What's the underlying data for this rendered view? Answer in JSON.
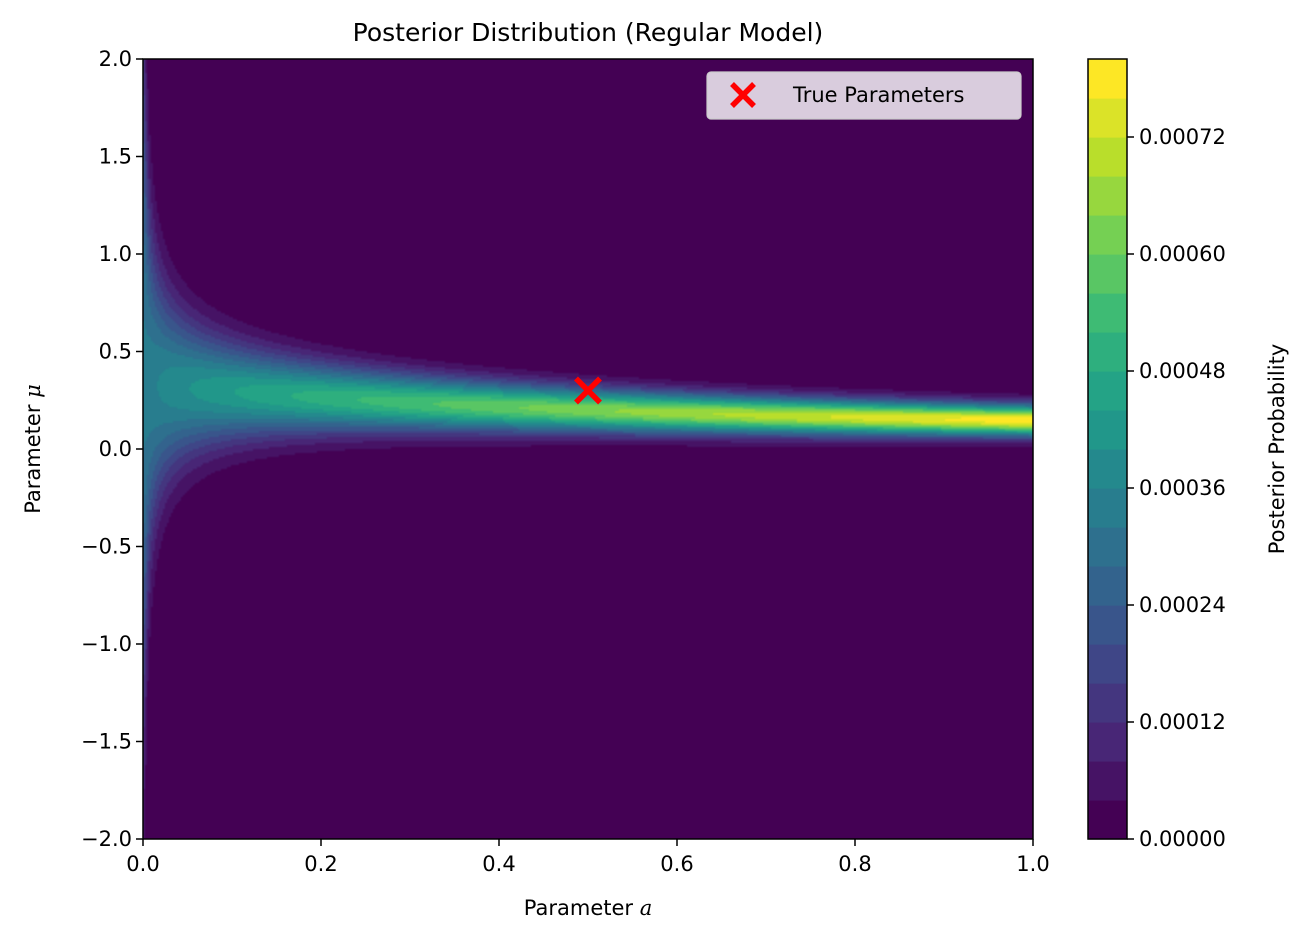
{
  "chart_data": {
    "type": "contourf",
    "title": "Posterior Distribution (Regular Model)",
    "xlabel_prefix": "Parameter ",
    "xlabel_symbol": "a",
    "ylabel_prefix": "Parameter ",
    "ylabel_symbol": "μ",
    "xlim": [
      0.0,
      1.0
    ],
    "ylim": [
      -2.0,
      2.0
    ],
    "xticks": [
      0.0,
      0.2,
      0.4,
      0.6,
      0.8,
      1.0
    ],
    "xtick_labels": [
      "0.0",
      "0.2",
      "0.4",
      "0.6",
      "0.8",
      "1.0"
    ],
    "yticks": [
      -2.0,
      -1.5,
      -1.0,
      -0.5,
      0.0,
      0.5,
      1.0,
      1.5,
      2.0
    ],
    "ytick_labels": [
      "−2.0",
      "−1.5",
      "−1.0",
      "−0.5",
      "0.0",
      "0.5",
      "1.0",
      "1.5",
      "2.0"
    ],
    "colormap": "viridis",
    "levels_min": 0.0,
    "levels_max": 0.0008,
    "level_count": 20,
    "colorbar": {
      "label": "Posterior Probability",
      "ticks": [
        0.0,
        0.00012,
        0.00024,
        0.00036,
        0.00048,
        0.0006,
        0.00072
      ],
      "tick_labels": [
        "0.00000",
        "0.00012",
        "0.00024",
        "0.00036",
        "0.00048",
        "0.00060",
        "0.00072"
      ]
    },
    "marker": {
      "label": "True Parameters",
      "x": 0.5,
      "y": 0.3,
      "symbol": "x",
      "color": "#ff0000"
    },
    "legend_position": "top-right",
    "grid": false
  }
}
